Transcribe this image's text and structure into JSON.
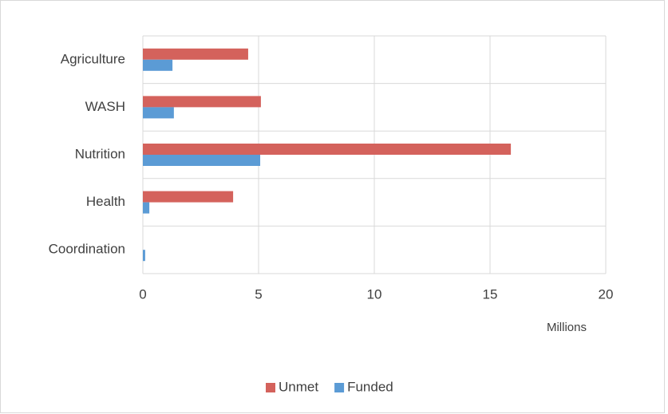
{
  "chart_data": {
    "type": "bar",
    "orientation": "horizontal",
    "categories": [
      "Agriculture",
      "WASH",
      "Nutrition",
      "Health",
      "Coordination"
    ],
    "series": [
      {
        "name": "Unmet",
        "color": "#d4625c",
        "values": [
          4.55,
          5.1,
          15.9,
          3.9,
          0
        ]
      },
      {
        "name": "Funded",
        "color": "#5b9bd5",
        "values": [
          1.28,
          1.34,
          5.07,
          0.28,
          0.1
        ]
      }
    ],
    "xlabel": "Millions",
    "xlim": [
      0,
      20
    ],
    "xticks": [
      0,
      5,
      10,
      15,
      20
    ],
    "grid": true,
    "legend": "bottom"
  }
}
